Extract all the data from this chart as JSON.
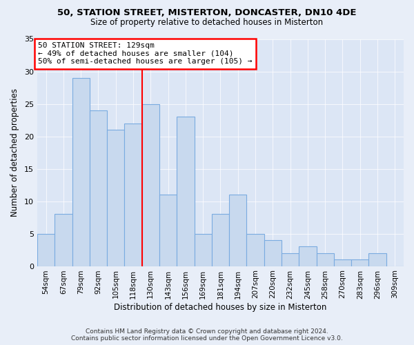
{
  "title": "50, STATION STREET, MISTERTON, DONCASTER, DN10 4DE",
  "subtitle": "Size of property relative to detached houses in Misterton",
  "xlabel": "Distribution of detached houses by size in Misterton",
  "ylabel": "Number of detached properties",
  "footer_line1": "Contains HM Land Registry data © Crown copyright and database right 2024.",
  "footer_line2": "Contains public sector information licensed under the Open Government Licence v3.0.",
  "bar_labels": [
    "54sqm",
    "67sqm",
    "79sqm",
    "92sqm",
    "105sqm",
    "118sqm",
    "130sqm",
    "143sqm",
    "156sqm",
    "169sqm",
    "181sqm",
    "194sqm",
    "207sqm",
    "220sqm",
    "232sqm",
    "245sqm",
    "258sqm",
    "270sqm",
    "283sqm",
    "296sqm",
    "309sqm"
  ],
  "bar_values": [
    5,
    8,
    29,
    24,
    21,
    22,
    25,
    11,
    23,
    5,
    8,
    11,
    5,
    4,
    2,
    3,
    2,
    1,
    1,
    2,
    0
  ],
  "bar_color": "#c8d9ee",
  "bar_edge_color": "#7aabe0",
  "vline_x_idx": 6,
  "vline_color": "red",
  "annotation_title": "50 STATION STREET: 129sqm",
  "annotation_line1": "← 49% of detached houses are smaller (104)",
  "annotation_line2": "50% of semi-detached houses are larger (105) →",
  "annotation_box_color": "white",
  "annotation_box_edge": "red",
  "ylim": [
    0,
    35
  ],
  "yticks": [
    0,
    5,
    10,
    15,
    20,
    25,
    30,
    35
  ],
  "background_color": "#e8eef8",
  "plot_bg_color": "#dce6f5"
}
